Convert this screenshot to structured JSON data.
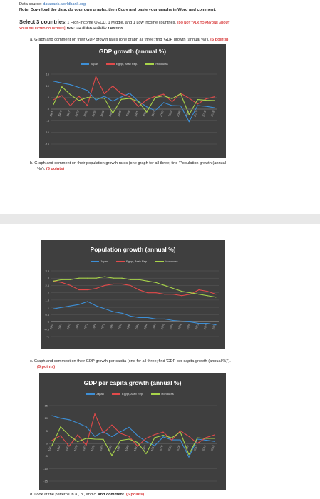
{
  "doc": {
    "source_label": "Data source: ",
    "source_link": "databank.worldbank.org",
    "note": "Note: Download the data, do your own graphs, then Copy and paste your graphs in Word and comment.",
    "select_bold": "Select 3 countries",
    "select_rest": ": 1 High-Income OECD, 1 Middle, and 1 Low income countries.",
    "select_warn1": "[DO NOT TALK TO ANYONE ABOUT",
    "select_warn2": "YOUR SELECTED COUNTRIES].",
    "select_note": " Note: use all data available: 1960-2020.",
    "qa": "a.  Graph and comment on their GDP growth rates (one graph all three; find 'GDP growth (annual %)').",
    "qa_points": "(5 points)",
    "qb1": "b.  Graph and comment on their population growth rates (one graph for all three; find 'Population growth (annual",
    "qb2": "%)').",
    "qb_points": "(5 points)",
    "qc": "c.  Graph and comment on their GDP growth per capita (one for all three; find 'GDP per capita growth (annual %)').",
    "qc_points": "(5 points)",
    "qd": "d.  Look at the patterns in a., b., and c.",
    "qd_bold": " and comment.",
    "qd_points": "(5 points)"
  },
  "colors": {
    "japan": "#3d8fd6",
    "egypt": "#e24a4a",
    "honduras": "#a8d44a",
    "bg": "#3f3f3f"
  },
  "chart_data": [
    {
      "type": "line",
      "title": "GDP growth (annual %)",
      "legend": [
        "Japan",
        "Egypt, Arab Rep.",
        "Honduras"
      ],
      "legend_position": "top",
      "ylim": [
        -15,
        15
      ],
      "yticks": [
        "15",
        "10",
        "5",
        "0",
        "-5",
        "-10",
        "-15"
      ],
      "x": [
        "1961",
        "1964",
        "1967",
        "1970",
        "1973",
        "1976",
        "1979",
        "1982",
        "1985",
        "1988",
        "1991",
        "1994",
        "1997",
        "2000",
        "2003",
        "2006",
        "2009",
        "2012",
        "2015",
        "2018"
      ],
      "series": [
        {
          "name": "Japan",
          "values": [
            12,
            11.2,
            10.5,
            9.3,
            8,
            3.9,
            5.5,
            3.4,
            5.2,
            6.8,
            3.4,
            1,
            -0.7,
            2.8,
            1.5,
            1.4,
            -5.4,
            1.5,
            1.2,
            0.6
          ]
        },
        {
          "name": "Egypt, Arab Rep.",
          "values": [
            4,
            5.8,
            1.4,
            5.6,
            1.5,
            14,
            6.6,
            9.9,
            6.6,
            5.3,
            1.1,
            4,
            5.5,
            6.4,
            3.2,
            6.8,
            4.7,
            2.2,
            4.4,
            5.3
          ]
        },
        {
          "name": "Honduras",
          "values": [
            2,
            9.6,
            6.2,
            3.7,
            5,
            4.7,
            4.7,
            -1.8,
            4.2,
            4.6,
            3.3,
            -1.3,
            5,
            5.7,
            4.5,
            6.6,
            -2.4,
            4.1,
            3.8,
            3.7
          ]
        }
      ]
    },
    {
      "type": "line",
      "title": "Population growth (annual %)",
      "legend": [
        "Japan",
        "Egypt, Arab Rep.",
        "Honduras"
      ],
      "legend_position": "top",
      "ylim": [
        -1,
        3.5
      ],
      "yticks": [
        "3.5",
        "3",
        "2.5",
        "2",
        "1.5",
        "1",
        "0.5",
        "0",
        "-0.5",
        "-1"
      ],
      "x": [
        "1961",
        "1964",
        "1967",
        "1970",
        "1973",
        "1976",
        "1979",
        "1982",
        "1985",
        "1988",
        "1991",
        "1994",
        "1997",
        "2000",
        "2003",
        "2006",
        "2009",
        "2012",
        "2015",
        "2018"
      ],
      "series": [
        {
          "name": "Japan",
          "values": [
            0.9,
            1,
            1.1,
            1.2,
            1.4,
            1.1,
            0.9,
            0.7,
            0.6,
            0.4,
            0.3,
            0.3,
            0.2,
            0.2,
            0.1,
            0.05,
            0,
            -0.1,
            -0.1,
            -0.2
          ]
        },
        {
          "name": "Egypt, Arab Rep.",
          "values": [
            2.8,
            2.7,
            2.5,
            2.2,
            2.2,
            2.3,
            2.5,
            2.6,
            2.6,
            2.5,
            2.2,
            2,
            2,
            1.9,
            1.9,
            1.8,
            1.9,
            2.2,
            2.1,
            1.9
          ]
        },
        {
          "name": "Honduras",
          "values": [
            2.8,
            2.9,
            2.9,
            3,
            3,
            3,
            3.1,
            3,
            3,
            2.9,
            2.9,
            2.8,
            2.7,
            2.5,
            2.3,
            2.1,
            2,
            1.9,
            1.8,
            1.7
          ]
        }
      ]
    },
    {
      "type": "line",
      "title": "GDP per capita growth (annual %)",
      "legend": [
        "Japan",
        "Egypt, Arab Rep.",
        "Honduras"
      ],
      "legend_position": "top",
      "ylim": [
        -15,
        15
      ],
      "yticks": [
        "15",
        "10",
        "5",
        "0",
        "-5",
        "-10",
        "-15"
      ],
      "x": [
        "1961",
        "1964",
        "1967",
        "1970",
        "1973",
        "1976",
        "1979",
        "1982",
        "1985",
        "1988",
        "1991",
        "1994",
        "1997",
        "2000",
        "2003",
        "2006",
        "2009",
        "2012",
        "2015",
        "2018"
      ],
      "series": [
        {
          "name": "Japan",
          "values": [
            11,
            10,
            9.4,
            8.1,
            6.6,
            2.8,
            4.6,
            2.7,
            4.6,
            6.4,
            3.1,
            0.7,
            -0.9,
            2.6,
            1.4,
            1.4,
            -5.4,
            1.7,
            1.3,
            0.8
          ]
        },
        {
          "name": "Egypt, Arab Rep.",
          "values": [
            1.2,
            3.1,
            -1.1,
            3.4,
            -0.7,
            11.7,
            4.1,
            7.3,
            4,
            2.8,
            -1.1,
            2,
            3.5,
            4.5,
            1.3,
            5,
            2.8,
            0,
            2.3,
            3.4
          ]
        },
        {
          "name": "Honduras",
          "values": [
            -0.8,
            6.6,
            3.2,
            0.7,
            2,
            1.7,
            1.6,
            -4.8,
            1.2,
            1.7,
            0.4,
            -4.1,
            2.3,
            3.2,
            2.2,
            4.5,
            -4.4,
            2.2,
            2,
            2
          ]
        }
      ]
    }
  ]
}
